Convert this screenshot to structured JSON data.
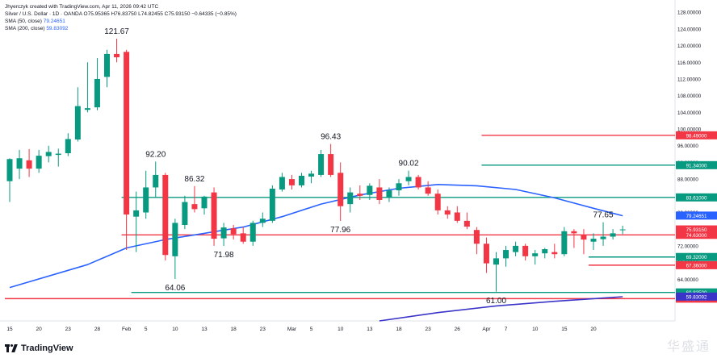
{
  "header": {
    "author_line": "Jhyerczyk created with TradingView.com, Apr 11, 2026 09:42 UTC",
    "symbol_line": "Silver / U.S. Dollar · 1D · OANDA O75.95365 H76.83750 L74.82455 C75.93150 −0.64335 (−0.85%)",
    "sma50_label": "SMA (50, close)",
    "sma50_value": "79.24651",
    "sma200_label": "SMA (200, close)",
    "sma200_value": "59.83092"
  },
  "footer": {
    "brand": "TradingView",
    "watermark": "华盛通"
  },
  "chart_data": {
    "type": "candlestick",
    "colors": {
      "up": "#089981",
      "down": "#f23645",
      "sma50": "#2962ff",
      "sma200": "#3a34c8"
    },
    "x_ticks": [
      {
        "i": 0,
        "label": "15"
      },
      {
        "i": 3,
        "label": "20"
      },
      {
        "i": 6,
        "label": "23"
      },
      {
        "i": 9,
        "label": "28"
      },
      {
        "i": 12,
        "label": "Feb"
      },
      {
        "i": 14,
        "label": "5"
      },
      {
        "i": 17,
        "label": "10"
      },
      {
        "i": 20,
        "label": "13"
      },
      {
        "i": 23,
        "label": "18"
      },
      {
        "i": 26,
        "label": "23"
      },
      {
        "i": 29,
        "label": "Mar"
      },
      {
        "i": 31,
        "label": "5"
      },
      {
        "i": 34,
        "label": "10"
      },
      {
        "i": 37,
        "label": "13"
      },
      {
        "i": 40,
        "label": "18"
      },
      {
        "i": 43,
        "label": "23"
      },
      {
        "i": 46,
        "label": "26"
      },
      {
        "i": 49,
        "label": "Apr"
      },
      {
        "i": 51,
        "label": "7"
      },
      {
        "i": 54,
        "label": "10"
      },
      {
        "i": 57,
        "label": "15"
      },
      {
        "i": 60,
        "label": "20"
      }
    ],
    "y_axis_labels": [
      "128.00000",
      "124.00000",
      "120.00000",
      "116.00000",
      "112.00000",
      "108.00000",
      "104.00000",
      "100.00000",
      "96.00000",
      "92.00000",
      "88.00000",
      "84.00000",
      "80.00000",
      "72.00000",
      "68.00000",
      "64.00000",
      "60.00000"
    ],
    "ylim": [
      54,
      129
    ],
    "candles": [
      {
        "o": 87.5,
        "h": 93.0,
        "l": 82.5,
        "c": 92.8
      },
      {
        "o": 90.5,
        "h": 95.0,
        "l": 88.0,
        "c": 93.0
      },
      {
        "o": 92.5,
        "h": 95.2,
        "l": 88.5,
        "c": 90.5
      },
      {
        "o": 90.5,
        "h": 95.0,
        "l": 89.5,
        "c": 93.6
      },
      {
        "o": 93.5,
        "h": 96.0,
        "l": 92.0,
        "c": 94.5
      },
      {
        "o": 93.8,
        "h": 95.3,
        "l": 91.0,
        "c": 94.1
      },
      {
        "o": 94.2,
        "h": 99.0,
        "l": 93.5,
        "c": 97.6
      },
      {
        "o": 97.5,
        "h": 110.0,
        "l": 97.0,
        "c": 105.5
      },
      {
        "o": 104.6,
        "h": 116.0,
        "l": 104.0,
        "c": 105.0
      },
      {
        "o": 105.2,
        "h": 117.0,
        "l": 104.5,
        "c": 112.0
      },
      {
        "o": 112.5,
        "h": 119.0,
        "l": 110.0,
        "c": 118.0
      },
      {
        "o": 118.0,
        "h": 121.67,
        "l": 116.0,
        "c": 117.2
      },
      {
        "o": 118.5,
        "h": 119.0,
        "l": 71.0,
        "c": 79.5
      },
      {
        "o": 79.0,
        "h": 85.0,
        "l": 70.5,
        "c": 80.5
      },
      {
        "o": 80.0,
        "h": 90.0,
        "l": 78.5,
        "c": 86.0
      },
      {
        "o": 86.0,
        "h": 92.2,
        "l": 83.5,
        "c": 89.0
      },
      {
        "o": 89.0,
        "h": 89.5,
        "l": 68.5,
        "c": 69.8
      },
      {
        "o": 69.5,
        "h": 78.5,
        "l": 64.06,
        "c": 77.5
      },
      {
        "o": 77.0,
        "h": 84.0,
        "l": 76.0,
        "c": 82.5
      },
      {
        "o": 82.0,
        "h": 86.32,
        "l": 80.0,
        "c": 80.8
      },
      {
        "o": 81.0,
        "h": 84.0,
        "l": 79.5,
        "c": 83.8
      },
      {
        "o": 84.8,
        "h": 86.0,
        "l": 72.0,
        "c": 73.7
      },
      {
        "o": 73.8,
        "h": 77.5,
        "l": 71.98,
        "c": 76.4
      },
      {
        "o": 76.2,
        "h": 77.0,
        "l": 73.5,
        "c": 74.8
      },
      {
        "o": 75.0,
        "h": 76.5,
        "l": 72.5,
        "c": 73.0
      },
      {
        "o": 73.0,
        "h": 78.0,
        "l": 72.0,
        "c": 77.5
      },
      {
        "o": 77.5,
        "h": 80.0,
        "l": 76.5,
        "c": 78.5
      },
      {
        "o": 78.0,
        "h": 86.5,
        "l": 77.5,
        "c": 85.7
      },
      {
        "o": 85.5,
        "h": 89.5,
        "l": 85.0,
        "c": 88.5
      },
      {
        "o": 88.0,
        "h": 89.0,
        "l": 85.5,
        "c": 86.5
      },
      {
        "o": 86.5,
        "h": 89.5,
        "l": 86.0,
        "c": 88.8
      },
      {
        "o": 88.6,
        "h": 90.0,
        "l": 87.0,
        "c": 89.3
      },
      {
        "o": 89.0,
        "h": 95.0,
        "l": 88.5,
        "c": 94.0
      },
      {
        "o": 94.0,
        "h": 96.43,
        "l": 88.5,
        "c": 89.0
      },
      {
        "o": 89.5,
        "h": 92.0,
        "l": 77.96,
        "c": 81.5
      },
      {
        "o": 82.0,
        "h": 86.0,
        "l": 80.0,
        "c": 84.8
      },
      {
        "o": 84.5,
        "h": 86.5,
        "l": 83.0,
        "c": 84.0
      },
      {
        "o": 84.2,
        "h": 87.0,
        "l": 83.0,
        "c": 86.4
      },
      {
        "o": 86.0,
        "h": 88.0,
        "l": 82.0,
        "c": 83.0
      },
      {
        "o": 83.5,
        "h": 86.0,
        "l": 82.5,
        "c": 85.3
      },
      {
        "o": 85.3,
        "h": 88.0,
        "l": 84.0,
        "c": 87.0
      },
      {
        "o": 87.5,
        "h": 90.02,
        "l": 86.5,
        "c": 88.5
      },
      {
        "o": 88.5,
        "h": 89.0,
        "l": 85.5,
        "c": 86.0
      },
      {
        "o": 86.0,
        "h": 87.5,
        "l": 84.0,
        "c": 84.5
      },
      {
        "o": 84.5,
        "h": 85.5,
        "l": 79.5,
        "c": 80.5
      },
      {
        "o": 80.5,
        "h": 81.5,
        "l": 78.5,
        "c": 79.5
      },
      {
        "o": 80.0,
        "h": 81.5,
        "l": 77.5,
        "c": 78.0
      },
      {
        "o": 78.0,
        "h": 80.0,
        "l": 76.0,
        "c": 76.6
      },
      {
        "o": 75.8,
        "h": 76.5,
        "l": 70.0,
        "c": 72.5
      },
      {
        "o": 72.5,
        "h": 74.0,
        "l": 65.5,
        "c": 67.8
      },
      {
        "o": 67.5,
        "h": 70.5,
        "l": 61.0,
        "c": 69.0
      },
      {
        "o": 69.0,
        "h": 72.0,
        "l": 67.0,
        "c": 71.0
      },
      {
        "o": 70.5,
        "h": 73.0,
        "l": 69.5,
        "c": 72.0
      },
      {
        "o": 72.0,
        "h": 72.5,
        "l": 68.5,
        "c": 69.5
      },
      {
        "o": 69.5,
        "h": 71.0,
        "l": 67.5,
        "c": 70.2
      },
      {
        "o": 70.2,
        "h": 71.5,
        "l": 69.0,
        "c": 71.2
      },
      {
        "o": 70.5,
        "h": 72.5,
        "l": 69.0,
        "c": 70.0
      },
      {
        "o": 70.0,
        "h": 76.5,
        "l": 69.5,
        "c": 75.5
      },
      {
        "o": 75.5,
        "h": 76.0,
        "l": 71.5,
        "c": 75.0
      },
      {
        "o": 74.5,
        "h": 76.0,
        "l": 70.0,
        "c": 73.5
      },
      {
        "o": 73.0,
        "h": 75.0,
        "l": 71.0,
        "c": 73.7
      },
      {
        "o": 73.6,
        "h": 77.65,
        "l": 72.0,
        "c": 74.2
      },
      {
        "o": 74.2,
        "h": 76.0,
        "l": 73.5,
        "c": 75.0
      },
      {
        "o": 75.9,
        "h": 76.83,
        "l": 74.82,
        "c": 75.93
      }
    ],
    "high_low_labels": [
      {
        "i": 11,
        "price": 121.67,
        "text": "121.67",
        "pos": "above"
      },
      {
        "i": 15,
        "price": 92.2,
        "text": "92.20",
        "pos": "above"
      },
      {
        "i": 17,
        "price": 64.06,
        "text": "64.06",
        "pos": "below"
      },
      {
        "i": 19,
        "price": 86.32,
        "text": "86.32",
        "pos": "above"
      },
      {
        "i": 22,
        "price": 71.98,
        "text": "71.98",
        "pos": "below"
      },
      {
        "i": 33,
        "price": 96.43,
        "text": "96.43",
        "pos": "above"
      },
      {
        "i": 34,
        "price": 77.96,
        "text": "77.96",
        "pos": "below"
      },
      {
        "i": 41,
        "price": 90.02,
        "text": "90.02",
        "pos": "above"
      },
      {
        "i": 50,
        "price": 61.0,
        "text": "61.00",
        "pos": "below"
      },
      {
        "i": 61,
        "price": 77.65,
        "text": "77.65",
        "pos": "above"
      }
    ],
    "sma50": [
      {
        "i": 0,
        "v": 62.0
      },
      {
        "i": 8,
        "v": 67.5
      },
      {
        "i": 12,
        "v": 71.5
      },
      {
        "i": 16,
        "v": 73.5
      },
      {
        "i": 20,
        "v": 75.0
      },
      {
        "i": 24,
        "v": 76.5
      },
      {
        "i": 28,
        "v": 79.0
      },
      {
        "i": 32,
        "v": 82.0
      },
      {
        "i": 36,
        "v": 84.2
      },
      {
        "i": 40,
        "v": 85.8
      },
      {
        "i": 44,
        "v": 86.7
      },
      {
        "i": 48,
        "v": 86.4
      },
      {
        "i": 52,
        "v": 85.5
      },
      {
        "i": 56,
        "v": 83.5
      },
      {
        "i": 60,
        "v": 81.0
      },
      {
        "i": 63,
        "v": 79.2
      }
    ],
    "sma200": [
      {
        "i": 38,
        "v": 54.0
      },
      {
        "i": 44,
        "v": 56.0
      },
      {
        "i": 50,
        "v": 57.6
      },
      {
        "i": 56,
        "v": 58.7
      },
      {
        "i": 63,
        "v": 59.8
      }
    ],
    "hlines": [
      {
        "price": 98.49,
        "label": "98.49000",
        "color": "#f23645",
        "x0_i": 49
      },
      {
        "price": 91.34,
        "label": "91.34000",
        "color": "#089981",
        "x0_i": 49
      },
      {
        "price": 83.61,
        "label": "83.61000",
        "color": "#089981",
        "x0_i": 12
      },
      {
        "price": 74.63,
        "label": "74.63000",
        "color": "#f23645",
        "x0_i": 12
      },
      {
        "price": 69.32,
        "label": "69.32000",
        "color": "#089981",
        "x0_i": 60
      },
      {
        "price": 67.36,
        "label": "67.36000",
        "color": "#f23645",
        "x0_i": 60
      },
      {
        "price": 60.83,
        "label": "60.83500",
        "color": "#089981",
        "x0_i": 13
      },
      {
        "price": 59.34,
        "label": "59.34000",
        "color": "#f23645",
        "x0_i": 0
      }
    ],
    "price_tags": [
      {
        "price": 79.25,
        "label": "79.24651",
        "color": "#2962ff"
      },
      {
        "price": 75.93,
        "label": "75.93150",
        "color": "#f23645"
      },
      {
        "price": 59.83,
        "label": "59.83092",
        "color": "#3a34c8"
      }
    ]
  }
}
